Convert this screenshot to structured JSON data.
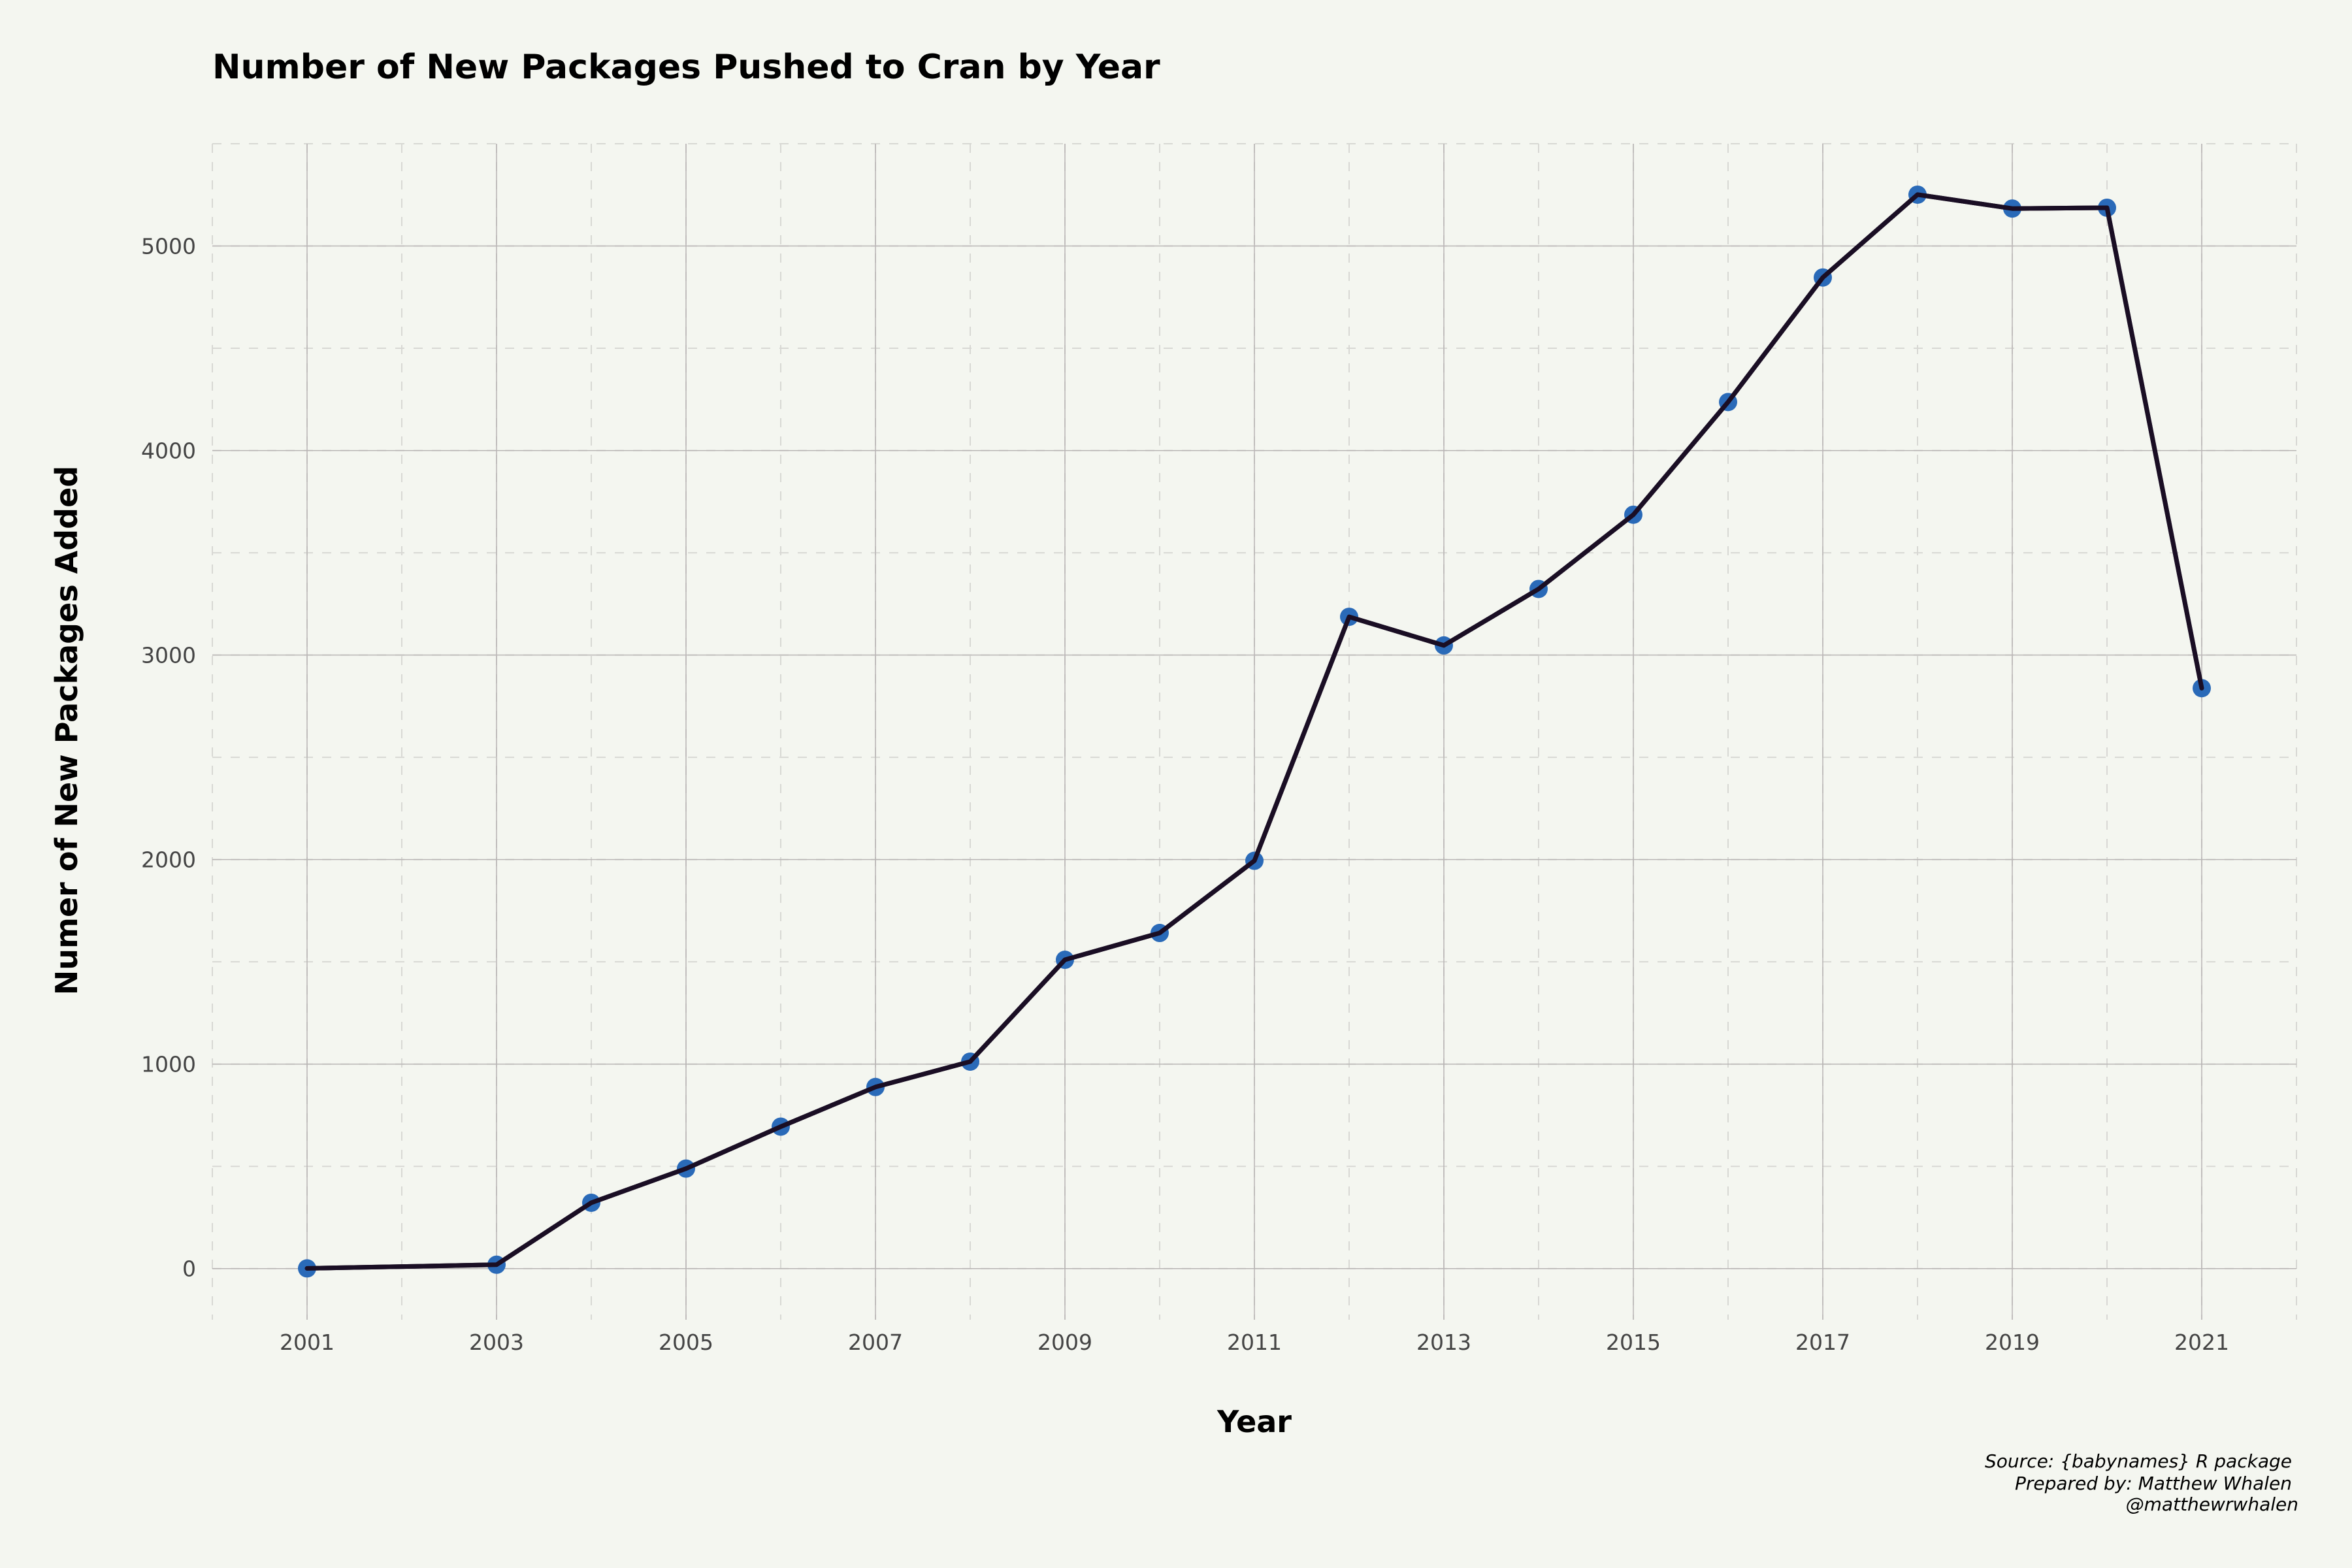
{
  "chart_data": {
    "type": "line",
    "title": "Number of New Packages Pushed to Cran by Year",
    "xlabel": "Year",
    "ylabel": "Numer of New Packages Added",
    "x": [
      2001,
      2003,
      2004,
      2005,
      2006,
      2007,
      2008,
      2009,
      2010,
      2011,
      2012,
      2013,
      2014,
      2015,
      2016,
      2017,
      2018,
      2019,
      2020,
      2021
    ],
    "series": [
      {
        "values": [
          1,
          19,
          322,
          489,
          694,
          888,
          1012,
          1510,
          1641,
          1994,
          3187,
          3047,
          3323,
          3686,
          4237,
          4846,
          5251,
          5183,
          5187,
          2838
        ]
      }
    ],
    "x_ticks": [
      "2001",
      "2003",
      "2005",
      "2007",
      "2009",
      "2011",
      "2013",
      "2015",
      "2017",
      "2019",
      "2021"
    ],
    "y_ticks": [
      "0",
      "1000",
      "2000",
      "3000",
      "4000",
      "5000"
    ],
    "xlim": [
      2000,
      2022
    ],
    "ylim": [
      -250,
      5500
    ],
    "grid": true,
    "legend": "none",
    "colors": {
      "background": "#f4f6f0",
      "line": "#1a0e24",
      "marker": "#2a6ab8",
      "grid_major": "#b8b4b4",
      "grid_minor": "#d8d8d4"
    },
    "source_lines": [
      "Source: {babynames} R package",
      "Prepared by: Matthew Whalen",
      "@matthewrwhalen"
    ]
  }
}
